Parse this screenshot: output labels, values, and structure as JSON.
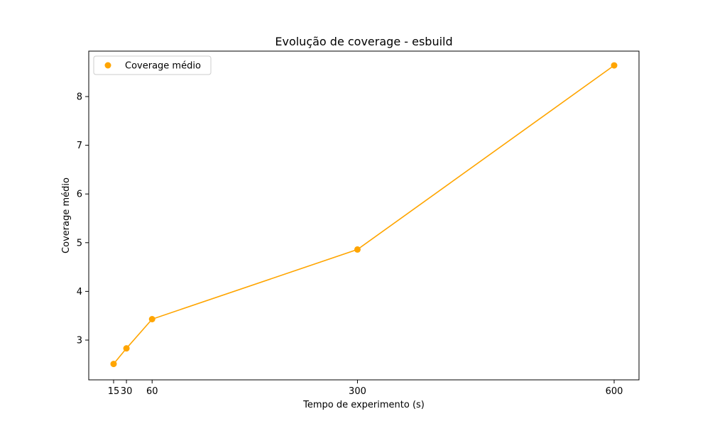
{
  "chart_data": {
    "type": "line",
    "title": "Evolução de coverage - esbuild",
    "xlabel": "Tempo de experimento (s)",
    "ylabel": "Coverage médio",
    "x": [
      15,
      30,
      60,
      300,
      600
    ],
    "xticks": [
      "15",
      "30",
      "60",
      "300",
      "600"
    ],
    "yticks": [
      "3",
      "4",
      "5",
      "6",
      "7",
      "8"
    ],
    "series": [
      {
        "name": "Coverage médio",
        "color": "#ffa500",
        "values": [
          2.51,
          2.83,
          3.43,
          4.86,
          8.64
        ]
      }
    ],
    "legend": "top-left",
    "grid": false
  }
}
